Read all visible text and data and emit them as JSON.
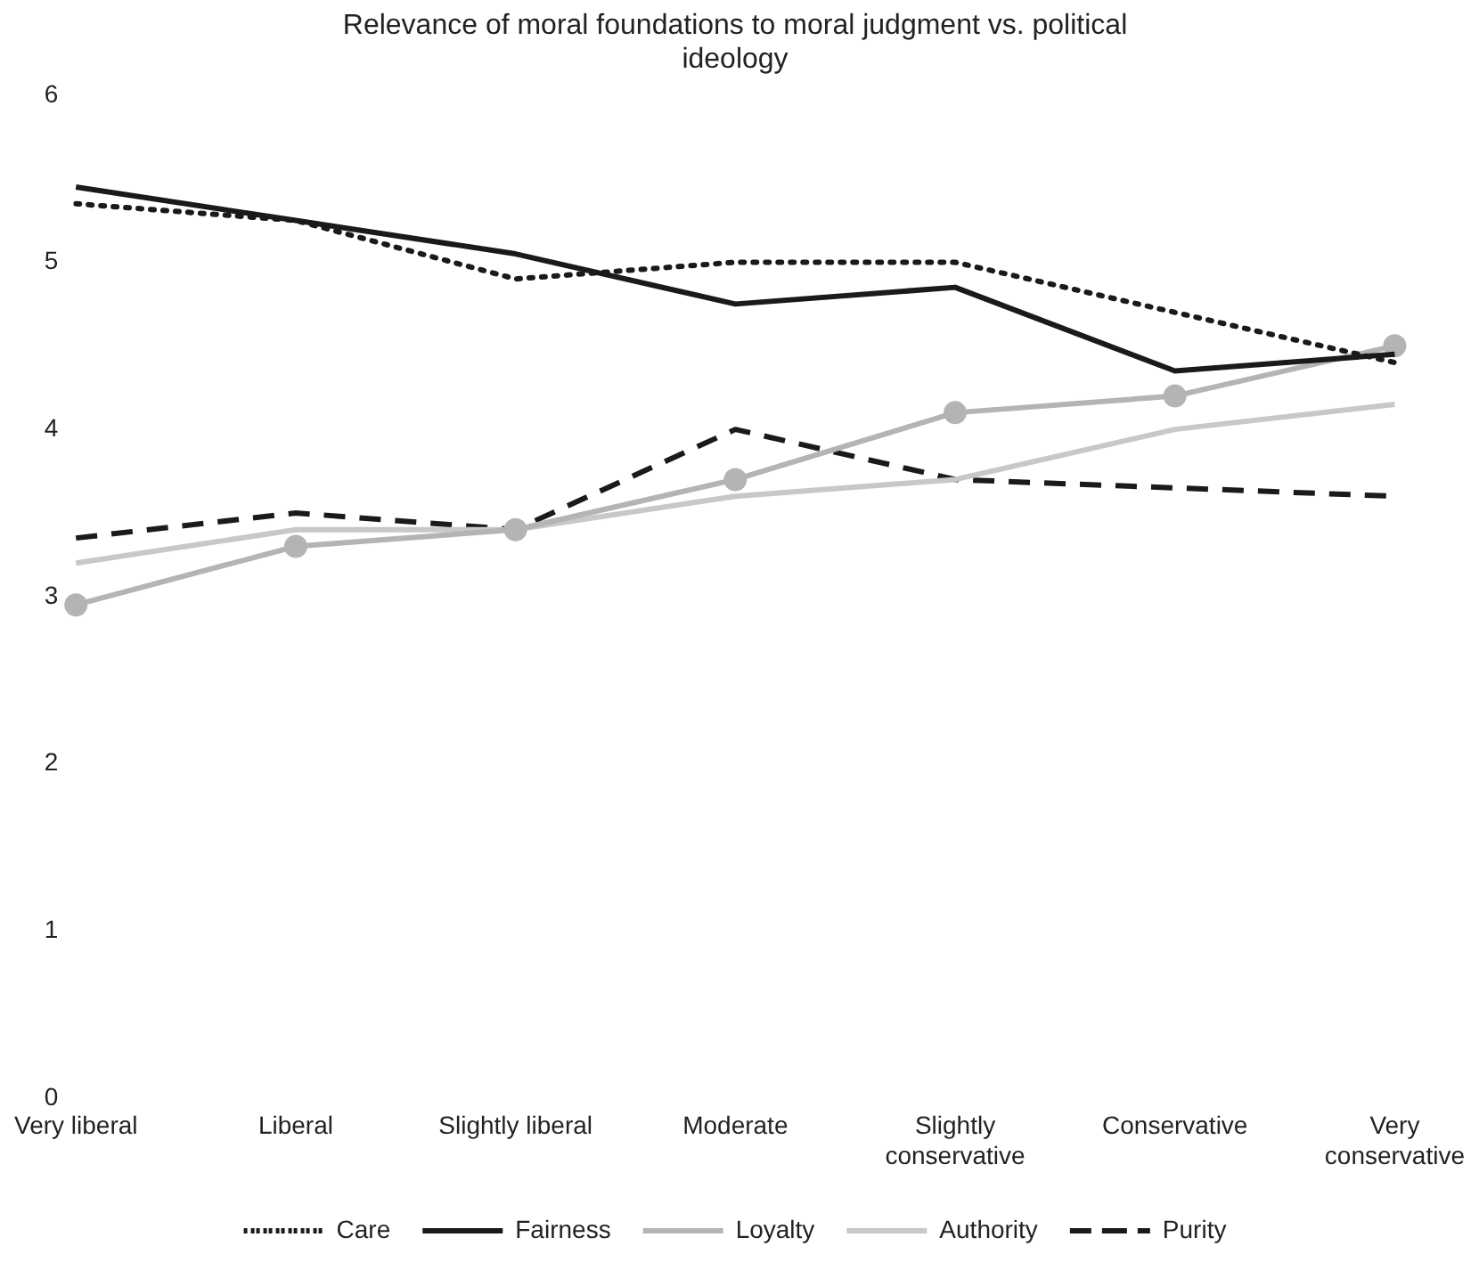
{
  "chart_data": {
    "type": "line",
    "title": "Relevance of moral foundations to moral judgment vs. political ideology",
    "categories": [
      "Very liberal",
      "Liberal",
      "Slightly liberal",
      "Moderate",
      "Slightly conservative",
      "Conservative",
      "Very conservative"
    ],
    "ylim": [
      0,
      6
    ],
    "yticks": [
      0,
      1,
      2,
      3,
      4,
      5,
      6
    ],
    "grid": false,
    "legend": "bottom",
    "marker": "none",
    "series": [
      {
        "name": "Care",
        "color": "#1a1a1a",
        "line_style": "dotted",
        "values": [
          5.35,
          5.25,
          4.9,
          5.0,
          5.0,
          4.7,
          4.4
        ]
      },
      {
        "name": "Fairness",
        "color": "#1a1a1a",
        "line_style": "solid",
        "values": [
          5.45,
          5.25,
          5.05,
          4.75,
          4.85,
          4.35,
          4.45
        ]
      },
      {
        "name": "Loyalty",
        "color": "#b4b4b6",
        "line_style": "solid",
        "marker": "circle",
        "values": [
          2.95,
          3.3,
          3.4,
          3.7,
          4.1,
          4.2,
          4.5
        ]
      },
      {
        "name": "Authority",
        "color": "#c8c8c8",
        "line_style": "solid",
        "values": [
          3.2,
          3.4,
          3.4,
          3.6,
          3.7,
          4.0,
          4.15
        ]
      },
      {
        "name": "Purity",
        "color": "#1a1a1a",
        "line_style": "dashed",
        "values": [
          3.35,
          3.5,
          3.4,
          4.0,
          3.7,
          3.65,
          3.6
        ]
      }
    ]
  }
}
